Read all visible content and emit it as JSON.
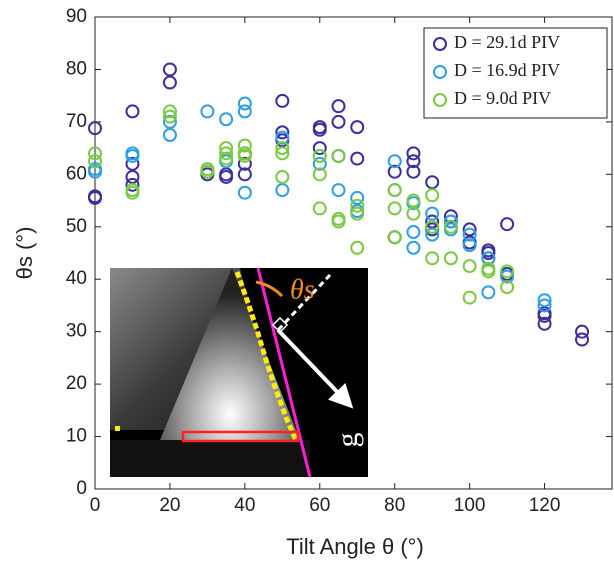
{
  "chart_data": {
    "type": "scatter",
    "xlabel": "Tilt Angle θ (°)",
    "ylabel": "θs (°)",
    "xlim": [
      0,
      138
    ],
    "xticks": [
      0,
      20,
      40,
      60,
      80,
      100,
      120
    ],
    "ylim": [
      0,
      90
    ],
    "yticks": [
      0,
      10,
      20,
      30,
      40,
      50,
      60,
      70,
      80,
      90
    ],
    "legend": "upper right",
    "series": [
      {
        "name": "D = 29.1d PIV",
        "color": "#3b2f9b",
        "x": [
          0,
          0,
          0,
          10,
          10,
          10,
          10,
          20,
          20,
          30,
          30,
          35,
          35,
          40,
          40,
          40,
          50,
          50,
          50,
          60,
          60,
          60,
          65,
          65,
          65,
          70,
          70,
          80,
          80,
          85,
          85,
          85,
          90,
          90,
          90,
          95,
          95,
          100,
          100,
          105,
          105,
          105,
          110,
          110,
          120,
          120,
          120,
          130,
          130
        ],
        "values": [
          68.8,
          55.5,
          55.8,
          72,
          62,
          59.5,
          58,
          80,
          77.5,
          60,
          60.5,
          59.5,
          60,
          64,
          62,
          60,
          74,
          68,
          66.5,
          69,
          68.5,
          65,
          73,
          70,
          63.5,
          69,
          63,
          60.5,
          48,
          64,
          62.5,
          60.5,
          58.5,
          51,
          49.5,
          52,
          51,
          49.5,
          47,
          45.5,
          45,
          44,
          50.5,
          41,
          33.5,
          33,
          31.5,
          30,
          28.5
        ]
      },
      {
        "name": "D = 16.9d PIV",
        "color": "#2e9fe3",
        "x": [
          0,
          0,
          10,
          10,
          20,
          20,
          30,
          35,
          35,
          40,
          40,
          40,
          50,
          50,
          60,
          60,
          65,
          70,
          70,
          80,
          80,
          80,
          85,
          85,
          85,
          90,
          90,
          95,
          95,
          100,
          100,
          105,
          105,
          110,
          120,
          120
        ],
        "values": [
          61,
          60.5,
          64,
          63.5,
          70,
          67.5,
          72,
          70.5,
          62.5,
          73.5,
          72,
          56.5,
          67,
          57,
          63.5,
          62,
          57,
          55.5,
          53,
          62.5,
          57,
          48,
          54.5,
          49,
          46,
          52.5,
          48.5,
          51,
          49.5,
          48.5,
          46.5,
          37.5,
          44,
          40.5,
          36,
          35
        ]
      },
      {
        "name": "D = 9.0d PIV",
        "color": "#7ac943",
        "x": [
          0,
          0,
          10,
          10,
          20,
          20,
          30,
          30,
          35,
          35,
          35,
          40,
          40,
          40,
          50,
          50,
          50,
          60,
          60,
          60,
          65,
          65,
          65,
          70,
          70,
          70,
          80,
          80,
          80,
          85,
          85,
          90,
          90,
          90,
          95,
          95,
          100,
          100,
          105,
          105,
          110,
          110
        ],
        "values": [
          64,
          62.5,
          57,
          56.5,
          72,
          71,
          61,
          60.5,
          65,
          64,
          63,
          65.5,
          64,
          63.5,
          65,
          64,
          59.5,
          63.5,
          60,
          53.5,
          63.5,
          51.5,
          51,
          54,
          52.5,
          46,
          57,
          53.5,
          48,
          55,
          52.5,
          56,
          50,
          44,
          50,
          44,
          42.5,
          36.5,
          42,
          41.5,
          41.5,
          38.5
        ]
      }
    ],
    "inset_labels": {
      "angle": "θs",
      "gravity": "g"
    }
  }
}
